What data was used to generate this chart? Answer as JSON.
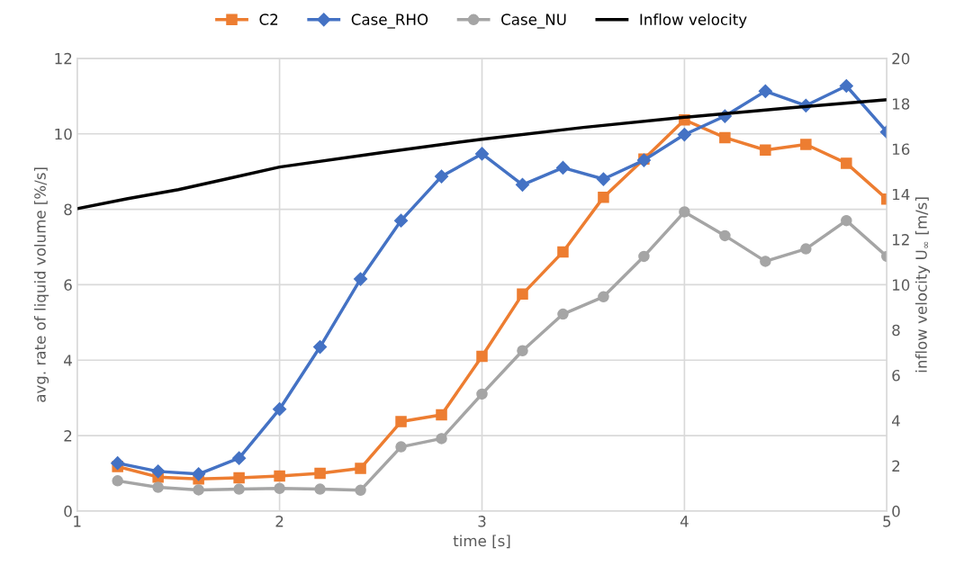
{
  "chart_data": {
    "type": "line",
    "xlabel": "time [s]",
    "ylabel": "avg. rate of liquid volume [%/s]",
    "y2label": "inflow velocity U$_{∞}$ [m/s]",
    "x": [
      1.2,
      1.4,
      1.6,
      1.8,
      2.0,
      2.2,
      2.4,
      2.6,
      2.8,
      3.0,
      3.2,
      3.4,
      3.6,
      3.8,
      4.0,
      4.2,
      4.4,
      4.6,
      4.8,
      5.0
    ],
    "series": [
      {
        "name": "C2",
        "color": "#ed7d31",
        "marker": "square",
        "values": [
          1.18,
          0.9,
          0.85,
          0.88,
          0.93,
          1.0,
          1.13,
          2.37,
          2.55,
          4.1,
          5.75,
          6.87,
          8.32,
          9.33,
          10.37,
          9.9,
          9.57,
          9.72,
          9.22,
          8.27
        ]
      },
      {
        "name": "Case_RHO",
        "color": "#4472c4",
        "marker": "diamond",
        "values": [
          1.27,
          1.05,
          0.98,
          1.4,
          2.7,
          4.35,
          6.15,
          7.7,
          8.87,
          9.47,
          8.65,
          9.1,
          8.8,
          9.3,
          9.98,
          10.47,
          11.13,
          10.75,
          11.27,
          10.05
        ]
      },
      {
        "name": "Case_NU",
        "color": "#a5a5a5",
        "marker": "circle",
        "values": [
          0.8,
          0.63,
          0.56,
          0.58,
          0.6,
          0.58,
          0.55,
          1.7,
          1.92,
          3.1,
          4.25,
          5.22,
          5.68,
          6.75,
          7.93,
          7.3,
          6.62,
          6.95,
          7.7,
          6.75
        ]
      },
      {
        "name": "Inflow velocity",
        "color": "#000000",
        "marker": "none",
        "axis": "y2",
        "x": [
          1.0,
          1.25,
          1.5,
          1.75,
          2.0,
          2.5,
          3.0,
          3.5,
          4.0,
          4.5,
          5.0
        ],
        "values": [
          13.36,
          13.8,
          14.2,
          14.7,
          15.2,
          15.83,
          16.43,
          16.95,
          17.4,
          17.8,
          18.17
        ]
      }
    ],
    "xlim": [
      1,
      5
    ],
    "xticks": [
      1,
      2,
      3,
      4,
      5
    ],
    "ylim": [
      0,
      12
    ],
    "yticks": [
      0,
      2,
      4,
      6,
      8,
      10,
      12
    ],
    "y2lim": [
      0,
      20
    ],
    "y2ticks": [
      0,
      2,
      4,
      6,
      8,
      10,
      12,
      14,
      16,
      18,
      20
    ],
    "grid": true,
    "legend": "top"
  }
}
